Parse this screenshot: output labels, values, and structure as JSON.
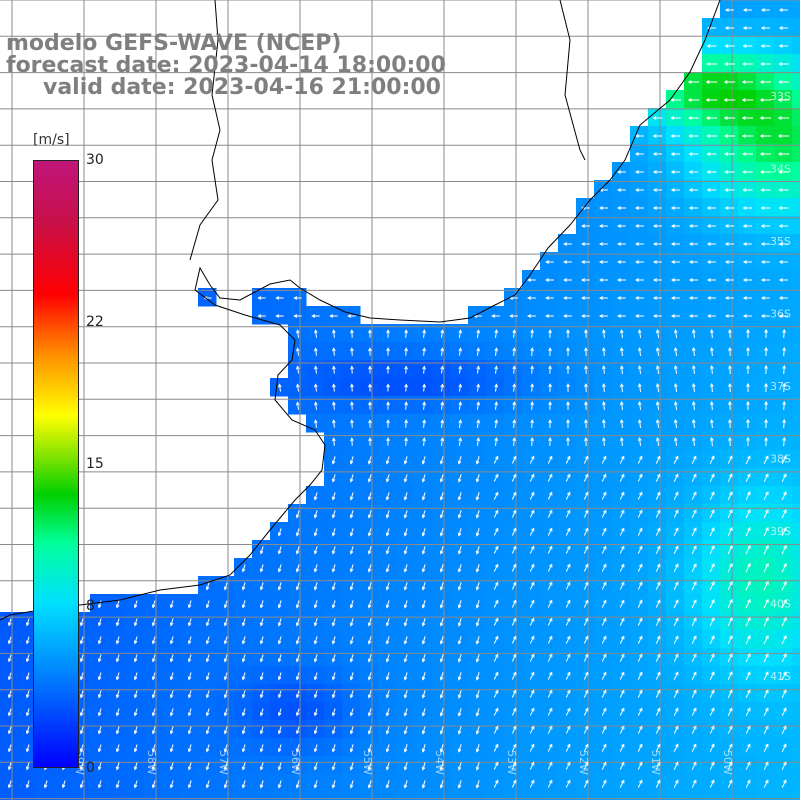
{
  "title": {
    "line1": "modelo GEFS-WAVE (NCEP)",
    "line2": "forecast date: 2023-04-14 18:00:00",
    "line3": "valid date: 2023-04-16 21:00:00"
  },
  "colorbar": {
    "unit": "[m/s]",
    "min": 0,
    "max": 30,
    "ticks": [
      "30",
      "22",
      "15",
      "8",
      "0"
    ],
    "tick_values": [
      30,
      22,
      15,
      8,
      0
    ],
    "gradient": [
      [
        "#0000ff",
        0
      ],
      [
        "#0090ff",
        0.17
      ],
      [
        "#00e0ff",
        0.27
      ],
      [
        "#00ff9a",
        0.37
      ],
      [
        "#00d000",
        0.45
      ],
      [
        "#90e600",
        0.52
      ],
      [
        "#ffff00",
        0.58
      ],
      [
        "#ff9000",
        0.68
      ],
      [
        "#ff0000",
        0.78
      ],
      [
        "#c8104a",
        0.9
      ],
      [
        "#c0157a",
        1
      ]
    ]
  },
  "map_labels": {
    "latitudes": [
      "33S",
      "34S",
      "35S",
      "36S",
      "37S",
      "38S",
      "39S",
      "40S",
      "41S"
    ],
    "longitudes": [
      "59W",
      "58W",
      "57W",
      "56W",
      "55W",
      "54W",
      "53W",
      "52W",
      "51W",
      "50W"
    ]
  },
  "colors": {
    "land": "#ffffff",
    "coast": "#000000",
    "grid": "#8a8a8a",
    "arrow": "#ffffff",
    "title": "#7f7f7f"
  }
}
